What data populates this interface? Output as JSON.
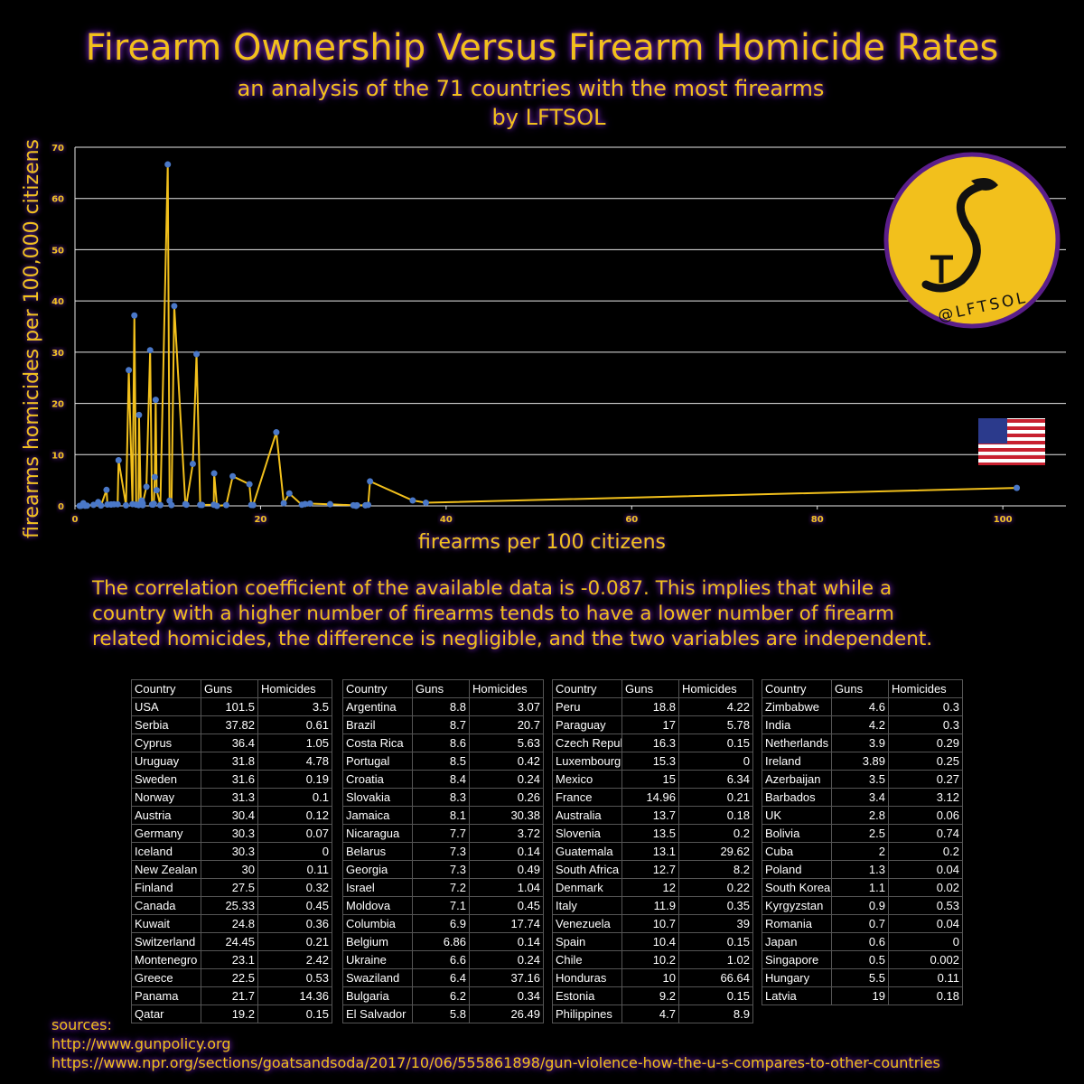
{
  "chart_data": {
    "type": "line",
    "title": "Firearm Ownership Versus Firearm Homicide Rates",
    "subtitle": "an analysis of the 71 countries with the most firearms",
    "byline": "by LFTSOL",
    "x_label": "firearms per 100 citizens",
    "y_label": "firearms homicides per 100,000 citizens",
    "x": [
      0.5,
      0.6,
      0.7,
      0.9,
      1.1,
      1.3,
      2,
      2.5,
      2.8,
      3.4,
      3.5,
      3.89,
      3.9,
      4.2,
      4.6,
      4.7,
      5.5,
      5.8,
      6.2,
      6.4,
      6.6,
      6.86,
      6.9,
      7.1,
      7.2,
      7.3,
      7.3,
      7.7,
      8.1,
      8.3,
      8.4,
      8.5,
      8.6,
      8.7,
      8.8,
      9.2,
      10,
      10.2,
      10.4,
      10.7,
      11.9,
      12,
      12.7,
      13.1,
      13.5,
      13.7,
      14.96,
      15,
      15.3,
      16.3,
      17,
      18.8,
      19,
      19.2,
      21.7,
      22.5,
      23.1,
      24.45,
      24.8,
      25.33,
      27.5,
      30,
      30.3,
      30.3,
      30.4,
      31.3,
      31.6,
      31.8,
      36.4,
      37.82,
      101.5
    ],
    "values": [
      0.002,
      0,
      0.04,
      0.53,
      0.02,
      0.04,
      0.2,
      0.74,
      0.06,
      3.12,
      0.27,
      0.25,
      0.29,
      0.3,
      0.3,
      8.9,
      0.11,
      26.49,
      0.34,
      37.16,
      0.24,
      0.14,
      17.74,
      0.45,
      1.04,
      0.14,
      0.49,
      3.72,
      30.38,
      0.26,
      0.24,
      0.42,
      5.63,
      20.7,
      3.07,
      0.15,
      66.64,
      1.02,
      0.15,
      39,
      0.35,
      0.22,
      8.2,
      29.62,
      0.2,
      0.18,
      0.21,
      6.34,
      0,
      0.15,
      5.78,
      4.22,
      0.18,
      0.15,
      14.36,
      0.53,
      2.42,
      0.21,
      0.36,
      0.45,
      0.32,
      0.11,
      0.07,
      0,
      0.12,
      0.1,
      0.19,
      4.78,
      1.05,
      0.61,
      3.5
    ],
    "line_color": "#f2c01c",
    "marker_color": "#4a78c8",
    "grid": true,
    "xlim": [
      0,
      106.8
    ],
    "xticks": [
      0,
      20,
      40,
      60,
      80,
      100
    ],
    "ylim": [
      0,
      70
    ],
    "yticks": [
      0,
      10,
      20,
      30,
      40,
      50,
      60,
      70
    ]
  },
  "logo_text": "@LFTSOL",
  "correlation_text": [
    "The correlation coefficient of the available data is -0.087. This implies that while a",
    "country with a higher number of firearms tends to have a lower number of firearm",
    "related homicides, the difference is negligible, and the two variables are independent."
  ],
  "tables": [
    {
      "header": [
        "Country",
        "Guns",
        "Homicides"
      ],
      "rows": [
        [
          "USA",
          101.5,
          3.5
        ],
        [
          "Serbia",
          37.82,
          0.61
        ],
        [
          "Cyprus",
          36.4,
          1.05
        ],
        [
          "Uruguay",
          31.8,
          4.78
        ],
        [
          "Sweden",
          31.6,
          0.19
        ],
        [
          "Norway",
          31.3,
          0.1
        ],
        [
          "Austria",
          30.4,
          0.12
        ],
        [
          "Germany",
          30.3,
          0.07
        ],
        [
          "Iceland",
          30.3,
          0
        ],
        [
          "New Zealan",
          30,
          0.11
        ],
        [
          "Finland",
          27.5,
          0.32
        ],
        [
          "Canada",
          25.33,
          0.45
        ],
        [
          "Kuwait",
          24.8,
          0.36
        ],
        [
          "Switzerland",
          24.45,
          0.21
        ],
        [
          "Montenegro",
          23.1,
          2.42
        ],
        [
          "Greece",
          22.5,
          0.53
        ],
        [
          "Panama",
          21.7,
          14.36
        ],
        [
          "Qatar",
          19.2,
          0.15
        ]
      ]
    },
    {
      "header": [
        "Country",
        "Guns",
        "Homicides"
      ],
      "rows": [
        [
          "Argentina",
          8.8,
          3.07
        ],
        [
          "Brazil",
          8.7,
          20.7
        ],
        [
          "Costa Rica",
          8.6,
          5.63
        ],
        [
          "Portugal",
          8.5,
          0.42
        ],
        [
          "Croatia",
          8.4,
          0.24
        ],
        [
          "Slovakia",
          8.3,
          0.26
        ],
        [
          "Jamaica",
          8.1,
          30.38
        ],
        [
          "Nicaragua",
          7.7,
          3.72
        ],
        [
          "Belarus",
          7.3,
          0.14
        ],
        [
          "Georgia",
          7.3,
          0.49
        ],
        [
          "Israel",
          7.2,
          1.04
        ],
        [
          "Moldova",
          7.1,
          0.45
        ],
        [
          "Columbia",
          6.9,
          17.74
        ],
        [
          "Belgium",
          6.86,
          0.14
        ],
        [
          "Ukraine",
          6.6,
          0.24
        ],
        [
          "Swaziland",
          6.4,
          37.16
        ],
        [
          "Bulgaria",
          6.2,
          0.34
        ],
        [
          "El Salvador",
          5.8,
          26.49
        ]
      ]
    },
    {
      "header": [
        "Country",
        "Guns",
        "Homicides"
      ],
      "rows": [
        [
          "Peru",
          18.8,
          4.22
        ],
        [
          "Paraguay",
          17,
          5.78
        ],
        [
          "Czech Repul",
          16.3,
          0.15
        ],
        [
          "Luxembourg",
          15.3,
          0
        ],
        [
          "Mexico",
          15,
          6.34
        ],
        [
          "France",
          14.96,
          0.21
        ],
        [
          "Australia",
          13.7,
          0.18
        ],
        [
          "Slovenia",
          13.5,
          0.2
        ],
        [
          "Guatemala",
          13.1,
          29.62
        ],
        [
          "South Africa",
          12.7,
          8.2
        ],
        [
          "Denmark",
          12,
          0.22
        ],
        [
          "Italy",
          11.9,
          0.35
        ],
        [
          "Venezuela",
          10.7,
          39
        ],
        [
          "Spain",
          10.4,
          0.15
        ],
        [
          "Chile",
          10.2,
          1.02
        ],
        [
          "Honduras",
          10,
          66.64
        ],
        [
          "Estonia",
          9.2,
          0.15
        ],
        [
          "Philippines",
          4.7,
          8.9
        ]
      ]
    },
    {
      "header": [
        "Country",
        "Guns",
        "Homicides"
      ],
      "rows": [
        [
          "Zimbabwe",
          4.6,
          0.3
        ],
        [
          "India",
          4.2,
          0.3
        ],
        [
          "Netherlands",
          3.9,
          0.29
        ],
        [
          "Ireland",
          3.89,
          0.25
        ],
        [
          "Azerbaijan",
          3.5,
          0.27
        ],
        [
          "Barbados",
          3.4,
          3.12
        ],
        [
          "UK",
          2.8,
          0.06
        ],
        [
          "Bolivia",
          2.5,
          0.74
        ],
        [
          "Cuba",
          2,
          0.2
        ],
        [
          "Poland",
          1.3,
          0.04
        ],
        [
          "South Korea",
          1.1,
          0.02
        ],
        [
          "Kyrgyzstan",
          0.9,
          0.53
        ],
        [
          "Romania",
          0.7,
          0.04
        ],
        [
          "Japan",
          0.6,
          0
        ],
        [
          "Singapore",
          0.5,
          0.002
        ],
        [
          "Hungary",
          5.5,
          0.11
        ],
        [
          "Latvia",
          19,
          0.18
        ]
      ]
    }
  ],
  "sources": [
    "sources:",
    "http://www.gunpolicy.org",
    "https://www.npr.org/sections/goatsandsoda/2017/10/06/555861898/gun-violence-how-the-u-s-compares-to-other-countries"
  ]
}
